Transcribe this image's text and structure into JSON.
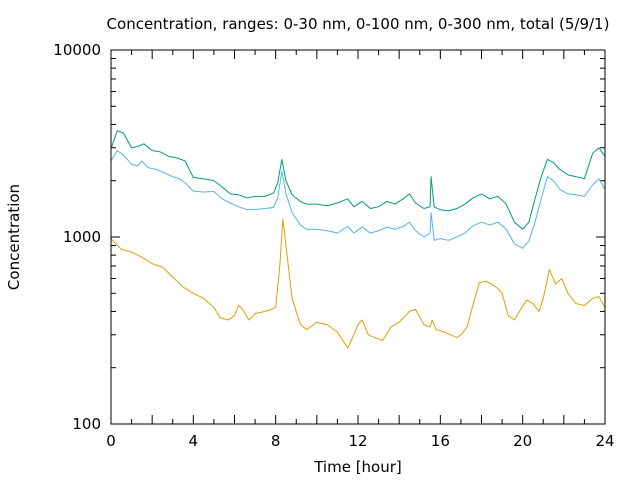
{
  "chart_data": {
    "type": "line",
    "title": "Concentration, ranges: 0-30 nm, 0-100 nm, 0-300 nm, total (5/9/1)",
    "xlabel": "Time [hour]",
    "ylabel": "Concentration",
    "xlim": [
      0,
      24
    ],
    "ylim": [
      100,
      10000
    ],
    "yscale": "log",
    "xticks": [
      "0",
      "4",
      "8",
      "12",
      "16",
      "20",
      "24"
    ],
    "yticks": [
      "100",
      "1000",
      "10000"
    ],
    "grid": false,
    "series": [
      {
        "color": "#e0a000",
        "points": [
          [
            0,
            980
          ],
          [
            0.5,
            860
          ],
          [
            1,
            830
          ],
          [
            1.5,
            780
          ],
          [
            2,
            720
          ],
          [
            2.5,
            690
          ],
          [
            3,
            610
          ],
          [
            3.5,
            540
          ],
          [
            4,
            500
          ],
          [
            4.5,
            470
          ],
          [
            5,
            420
          ],
          [
            5.3,
            370
          ],
          [
            5.7,
            360
          ],
          [
            6,
            380
          ],
          [
            6.2,
            430
          ],
          [
            6.4,
            410
          ],
          [
            6.7,
            360
          ],
          [
            7,
            390
          ],
          [
            7.5,
            400
          ],
          [
            7.8,
            410
          ],
          [
            8.0,
            420
          ],
          [
            8.2,
            700
          ],
          [
            8.35,
            1250
          ],
          [
            8.5,
            900
          ],
          [
            8.8,
            470
          ],
          [
            9.2,
            340
          ],
          [
            9.5,
            320
          ],
          [
            10,
            350
          ],
          [
            10.5,
            340
          ],
          [
            11,
            310
          ],
          [
            11.5,
            255
          ],
          [
            11.8,
            300
          ],
          [
            12,
            340
          ],
          [
            12.2,
            360
          ],
          [
            12.5,
            300
          ],
          [
            12.8,
            290
          ],
          [
            13.2,
            280
          ],
          [
            13.6,
            330
          ],
          [
            14,
            350
          ],
          [
            14.5,
            400
          ],
          [
            14.8,
            410
          ],
          [
            15.2,
            340
          ],
          [
            15.5,
            330
          ],
          [
            15.6,
            360
          ],
          [
            15.8,
            320
          ],
          [
            16.2,
            310
          ],
          [
            16.5,
            300
          ],
          [
            16.8,
            290
          ],
          [
            17,
            300
          ],
          [
            17.3,
            330
          ],
          [
            17.6,
            440
          ],
          [
            17.9,
            570
          ],
          [
            18.2,
            580
          ],
          [
            18.5,
            560
          ],
          [
            18.8,
            530
          ],
          [
            19,
            500
          ],
          [
            19.3,
            380
          ],
          [
            19.6,
            360
          ],
          [
            19.9,
            410
          ],
          [
            20.2,
            460
          ],
          [
            20.5,
            440
          ],
          [
            20.8,
            400
          ],
          [
            21.0,
            470
          ],
          [
            21.3,
            670
          ],
          [
            21.6,
            560
          ],
          [
            21.9,
            600
          ],
          [
            22.2,
            500
          ],
          [
            22.6,
            440
          ],
          [
            23,
            430
          ],
          [
            23.4,
            470
          ],
          [
            23.7,
            480
          ],
          [
            24,
            420
          ]
        ]
      },
      {
        "color": "#56b4e9",
        "points": [
          [
            0,
            2550
          ],
          [
            0.3,
            2900
          ],
          [
            0.6,
            2750
          ],
          [
            1,
            2450
          ],
          [
            1.3,
            2400
          ],
          [
            1.5,
            2550
          ],
          [
            1.8,
            2350
          ],
          [
            2.2,
            2300
          ],
          [
            2.6,
            2200
          ],
          [
            3,
            2100
          ],
          [
            3.3,
            2050
          ],
          [
            3.6,
            1950
          ],
          [
            4,
            1760
          ],
          [
            4.5,
            1740
          ],
          [
            5,
            1750
          ],
          [
            5.4,
            1600
          ],
          [
            5.8,
            1520
          ],
          [
            6.2,
            1450
          ],
          [
            6.6,
            1400
          ],
          [
            7,
            1400
          ],
          [
            7.5,
            1420
          ],
          [
            7.9,
            1440
          ],
          [
            8.1,
            1620
          ],
          [
            8.3,
            2250
          ],
          [
            8.5,
            1700
          ],
          [
            8.8,
            1350
          ],
          [
            9.2,
            1160
          ],
          [
            9.5,
            1100
          ],
          [
            10,
            1100
          ],
          [
            10.5,
            1080
          ],
          [
            11,
            1050
          ],
          [
            11.5,
            1140
          ],
          [
            11.8,
            1050
          ],
          [
            12.2,
            1130
          ],
          [
            12.6,
            1050
          ],
          [
            13,
            1080
          ],
          [
            13.4,
            1130
          ],
          [
            13.8,
            1100
          ],
          [
            14.2,
            1140
          ],
          [
            14.5,
            1200
          ],
          [
            14.8,
            1080
          ],
          [
            15.2,
            1000
          ],
          [
            15.5,
            1050
          ],
          [
            15.55,
            1350
          ],
          [
            15.7,
            960
          ],
          [
            16,
            980
          ],
          [
            16.4,
            960
          ],
          [
            16.8,
            1000
          ],
          [
            17.2,
            1050
          ],
          [
            17.6,
            1150
          ],
          [
            18,
            1200
          ],
          [
            18.4,
            1160
          ],
          [
            18.8,
            1200
          ],
          [
            19.2,
            1100
          ],
          [
            19.6,
            920
          ],
          [
            20,
            870
          ],
          [
            20.3,
            950
          ],
          [
            20.6,
            1200
          ],
          [
            20.9,
            1600
          ],
          [
            21.2,
            2100
          ],
          [
            21.5,
            2000
          ],
          [
            21.8,
            1800
          ],
          [
            22.2,
            1700
          ],
          [
            22.6,
            1680
          ],
          [
            23,
            1650
          ],
          [
            23.4,
            1900
          ],
          [
            23.7,
            2050
          ],
          [
            24,
            1800
          ]
        ]
      },
      {
        "color": "#009e73",
        "points": [
          [
            0,
            2950
          ],
          [
            0.3,
            3700
          ],
          [
            0.6,
            3600
          ],
          [
            1,
            3000
          ],
          [
            1.3,
            3050
          ],
          [
            1.6,
            3150
          ],
          [
            2,
            2900
          ],
          [
            2.4,
            2850
          ],
          [
            2.8,
            2700
          ],
          [
            3.2,
            2650
          ],
          [
            3.6,
            2550
          ],
          [
            4,
            2080
          ],
          [
            4.5,
            2050
          ],
          [
            5,
            2000
          ],
          [
            5.4,
            1850
          ],
          [
            5.8,
            1700
          ],
          [
            6.2,
            1680
          ],
          [
            6.6,
            1620
          ],
          [
            7,
            1650
          ],
          [
            7.5,
            1650
          ],
          [
            7.9,
            1720
          ],
          [
            8.1,
            1950
          ],
          [
            8.3,
            2600
          ],
          [
            8.5,
            2000
          ],
          [
            8.8,
            1680
          ],
          [
            9.2,
            1550
          ],
          [
            9.5,
            1500
          ],
          [
            10,
            1500
          ],
          [
            10.5,
            1470
          ],
          [
            11,
            1520
          ],
          [
            11.5,
            1600
          ],
          [
            11.8,
            1450
          ],
          [
            12.2,
            1550
          ],
          [
            12.6,
            1420
          ],
          [
            13,
            1450
          ],
          [
            13.4,
            1550
          ],
          [
            13.8,
            1500
          ],
          [
            14.2,
            1600
          ],
          [
            14.5,
            1700
          ],
          [
            14.8,
            1520
          ],
          [
            15.2,
            1420
          ],
          [
            15.5,
            1450
          ],
          [
            15.55,
            2100
          ],
          [
            15.7,
            1450
          ],
          [
            16,
            1400
          ],
          [
            16.4,
            1380
          ],
          [
            16.8,
            1420
          ],
          [
            17.2,
            1500
          ],
          [
            17.6,
            1620
          ],
          [
            18,
            1700
          ],
          [
            18.4,
            1600
          ],
          [
            18.8,
            1650
          ],
          [
            19.2,
            1500
          ],
          [
            19.6,
            1200
          ],
          [
            20,
            1100
          ],
          [
            20.3,
            1200
          ],
          [
            20.6,
            1600
          ],
          [
            20.9,
            2100
          ],
          [
            21.2,
            2600
          ],
          [
            21.5,
            2500
          ],
          [
            21.8,
            2300
          ],
          [
            22.2,
            2150
          ],
          [
            22.6,
            2100
          ],
          [
            23,
            2050
          ],
          [
            23.4,
            2800
          ],
          [
            23.7,
            3000
          ],
          [
            24,
            2700
          ]
        ]
      }
    ]
  }
}
